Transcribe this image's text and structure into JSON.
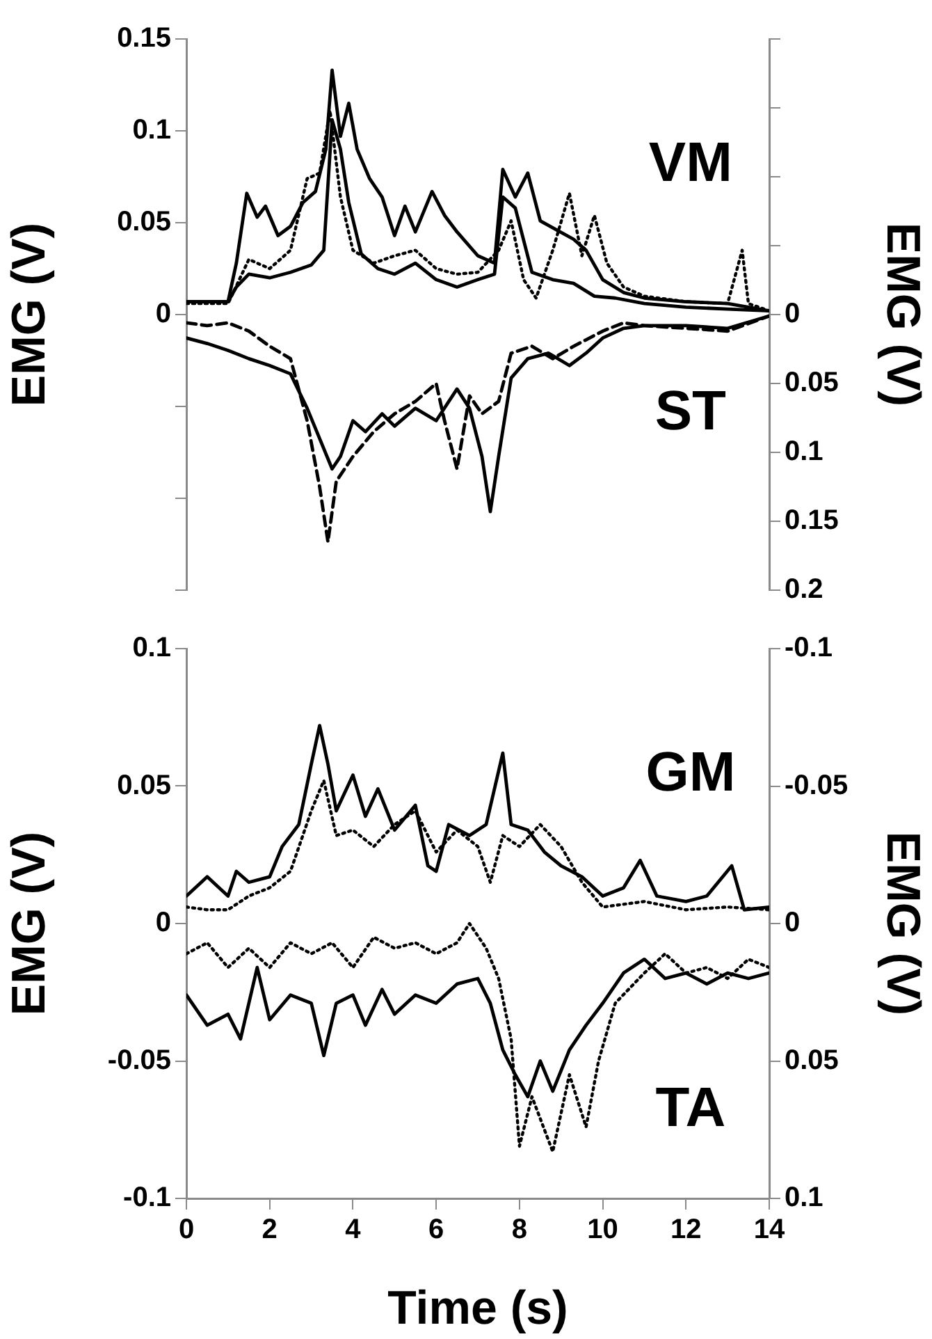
{
  "chart_data": [
    {
      "type": "line",
      "ylabel": "EMG (V)",
      "y2label": "EMG (V)",
      "xlim": [
        0,
        14
      ],
      "xticks": [
        0,
        2,
        4,
        6,
        8,
        10,
        12,
        14
      ],
      "ylim": [
        -0.15,
        0.15
      ],
      "yticks": [
        {
          "value": -0.15,
          "label": null
        },
        {
          "value": -0.1,
          "label": null
        },
        {
          "value": -0.05,
          "label": null
        },
        0,
        0.05,
        0.1,
        0.15
      ],
      "y2lim": [
        0.2,
        -0.2
      ],
      "y2ticks": [
        {
          "value": -0.2,
          "label": null
        },
        {
          "value": -0.15,
          "label": null
        },
        {
          "value": -0.1,
          "label": null
        },
        {
          "value": -0.05,
          "label": null
        },
        0,
        0.05,
        0.1,
        0.15,
        0.2
      ],
      "tick_labels": "y",
      "grid": false,
      "legend": false,
      "marker": "none",
      "series": [
        {
          "name": "VM",
          "color": "#000000",
          "line_style": "solid",
          "x": [
            0,
            1,
            1.2,
            1.45,
            1.7,
            1.9,
            2.2,
            2.5,
            2.8,
            3.1,
            3.35,
            3.5,
            3.7,
            3.9,
            4.1,
            4.4,
            4.7,
            5,
            5.25,
            5.5,
            5.9,
            6.2,
            6.5,
            7,
            7.4,
            7.6,
            7.9,
            8.2,
            8.5,
            8.9,
            9.3,
            9.6,
            10,
            10.5,
            11,
            12,
            13,
            14
          ],
          "values": [
            0.007,
            0.007,
            0.028,
            0.066,
            0.053,
            0.059,
            0.043,
            0.048,
            0.061,
            0.067,
            0.09,
            0.133,
            0.097,
            0.115,
            0.09,
            0.074,
            0.064,
            0.043,
            0.059,
            0.045,
            0.067,
            0.054,
            0.045,
            0.032,
            0.028,
            0.079,
            0.064,
            0.077,
            0.051,
            0.046,
            0.041,
            0.035,
            0.019,
            0.012,
            0.009,
            0.007,
            0.006,
            0.002
          ]
        },
        {
          "color": "#000000",
          "line_style": "solid",
          "x": [
            0,
            1,
            1.2,
            1.5,
            2,
            2.5,
            3,
            3.3,
            3.5,
            3.7,
            3.9,
            4.2,
            4.6,
            5,
            5.5,
            6,
            6.5,
            7,
            7.4,
            7.6,
            7.9,
            8.3,
            8.8,
            9.3,
            9.8,
            10.3,
            11,
            12,
            13,
            14
          ],
          "values": [
            0.007,
            0.007,
            0.015,
            0.022,
            0.02,
            0.023,
            0.027,
            0.035,
            0.106,
            0.09,
            0.061,
            0.033,
            0.025,
            0.022,
            0.028,
            0.019,
            0.015,
            0.019,
            0.022,
            0.064,
            0.058,
            0.023,
            0.019,
            0.017,
            0.01,
            0.009,
            0.006,
            0.004,
            0.003,
            0.002
          ]
        },
        {
          "color": "#000000",
          "line_style": "dotted",
          "x": [
            0,
            1,
            1.5,
            2,
            2.5,
            2.9,
            3.2,
            3.45,
            3.7,
            4,
            4.5,
            5,
            5.5,
            6,
            6.5,
            7,
            7.5,
            7.8,
            8.1,
            8.4,
            8.8,
            9.2,
            9.5,
            9.8,
            10.1,
            10.5,
            11,
            12,
            13,
            13.35,
            13.5,
            14
          ],
          "values": [
            0.006,
            0.006,
            0.03,
            0.025,
            0.035,
            0.074,
            0.077,
            0.111,
            0.064,
            0.035,
            0.028,
            0.032,
            0.035,
            0.025,
            0.022,
            0.023,
            0.035,
            0.051,
            0.019,
            0.009,
            0.035,
            0.066,
            0.032,
            0.054,
            0.028,
            0.015,
            0.01,
            0.007,
            0.006,
            0.035,
            0.006,
            0.002
          ]
        },
        {
          "name": "ST",
          "color": "#000000",
          "line_style": "solid",
          "axis": "y2",
          "x": [
            0,
            0.5,
            1,
            1.5,
            2,
            2.5,
            2.9,
            3.2,
            3.5,
            3.7,
            4,
            4.3,
            4.7,
            5,
            5.5,
            6,
            6.5,
            6.8,
            7.1,
            7.3,
            7.5,
            7.8,
            8.2,
            8.7,
            9.2,
            9.6,
            10,
            10.5,
            11,
            12,
            13,
            14
          ],
          "values": [
            0.017,
            0.021,
            0.026,
            0.032,
            0.037,
            0.043,
            0.068,
            0.09,
            0.112,
            0.103,
            0.077,
            0.085,
            0.072,
            0.081,
            0.068,
            0.077,
            0.054,
            0.068,
            0.103,
            0.143,
            0.103,
            0.046,
            0.032,
            0.028,
            0.037,
            0.028,
            0.017,
            0.01,
            0.008,
            0.008,
            0.01,
            0.001
          ]
        },
        {
          "color": "#000000",
          "line_style": "dashed",
          "axis": "y2",
          "x": [
            0,
            0.5,
            1,
            1.5,
            2,
            2.5,
            2.9,
            3.2,
            3.4,
            3.6,
            4,
            4.5,
            5,
            5.5,
            6,
            6.2,
            6.5,
            6.8,
            7.1,
            7.5,
            7.8,
            8.3,
            8.8,
            9.3,
            10,
            10.5,
            11,
            12,
            13,
            14
          ],
          "values": [
            0.006,
            0.008,
            0.006,
            0.012,
            0.023,
            0.032,
            0.077,
            0.125,
            0.165,
            0.121,
            0.103,
            0.085,
            0.072,
            0.063,
            0.05,
            0.077,
            0.112,
            0.059,
            0.072,
            0.063,
            0.028,
            0.023,
            0.032,
            0.023,
            0.012,
            0.006,
            0.008,
            0.01,
            0.012,
            0.001
          ]
        }
      ]
    },
    {
      "type": "line",
      "xlabel": "Time (s)",
      "ylabel": "EMG (V)",
      "y2label": "EMG (V)",
      "xlim": [
        0,
        14
      ],
      "xticks": [
        0,
        2,
        4,
        6,
        8,
        10,
        12,
        14
      ],
      "ylim": [
        -0.1,
        0.1
      ],
      "yticks": [
        -0.1,
        -0.05,
        0,
        0.05,
        0.1
      ],
      "y2lim": [
        0.1,
        -0.1
      ],
      "y2ticks": [
        -0.1,
        -0.05,
        0,
        0.05,
        0.1
      ],
      "grid": false,
      "legend": false,
      "marker": "none",
      "series": [
        {
          "name": "GM",
          "color": "#000000",
          "line_style": "solid",
          "x": [
            0,
            0.5,
            1,
            1.2,
            1.5,
            2,
            2.3,
            2.7,
            3,
            3.2,
            3.4,
            3.6,
            4,
            4.3,
            4.6,
            5,
            5.5,
            5.8,
            6,
            6.3,
            6.8,
            7.2,
            7.6,
            7.8,
            8.2,
            8.6,
            9,
            9.5,
            10,
            10.5,
            10.9,
            11.3,
            12,
            12.5,
            13.1,
            13.4,
            14
          ],
          "values": [
            0.01,
            0.017,
            0.01,
            0.019,
            0.015,
            0.017,
            0.028,
            0.036,
            0.058,
            0.072,
            0.058,
            0.041,
            0.054,
            0.039,
            0.049,
            0.034,
            0.043,
            0.021,
            0.019,
            0.036,
            0.032,
            0.036,
            0.062,
            0.036,
            0.034,
            0.026,
            0.021,
            0.017,
            0.01,
            0.013,
            0.023,
            0.01,
            0.008,
            0.01,
            0.021,
            0.005,
            0.006
          ]
        },
        {
          "color": "#000000",
          "line_style": "dotted",
          "x": [
            0,
            0.5,
            1,
            1.5,
            2,
            2.5,
            3,
            3.3,
            3.6,
            4,
            4.5,
            5,
            5.5,
            6,
            6.5,
            7,
            7.3,
            7.6,
            8,
            8.5,
            9,
            9.5,
            10,
            11,
            12,
            13,
            14
          ],
          "values": [
            0.006,
            0.005,
            0.005,
            0.01,
            0.013,
            0.019,
            0.041,
            0.052,
            0.032,
            0.034,
            0.028,
            0.036,
            0.041,
            0.026,
            0.034,
            0.028,
            0.015,
            0.032,
            0.028,
            0.036,
            0.028,
            0.015,
            0.006,
            0.008,
            0.005,
            0.006,
            0.005
          ]
        },
        {
          "name": "TA",
          "color": "#000000",
          "line_style": "solid",
          "axis": "y2",
          "x": [
            0,
            0.5,
            1,
            1.3,
            1.7,
            2,
            2.5,
            3,
            3.3,
            3.6,
            4,
            4.3,
            4.7,
            5,
            5.5,
            6,
            6.5,
            7,
            7.3,
            7.6,
            7.9,
            8.2,
            8.5,
            8.8,
            9.2,
            9.6,
            10,
            10.5,
            11,
            11.5,
            12,
            12.5,
            13,
            13.5,
            14
          ],
          "values": [
            0.026,
            0.037,
            0.033,
            0.042,
            0.016,
            0.035,
            0.026,
            0.029,
            0.048,
            0.029,
            0.026,
            0.037,
            0.024,
            0.033,
            0.026,
            0.029,
            0.022,
            0.02,
            0.029,
            0.046,
            0.055,
            0.063,
            0.05,
            0.061,
            0.046,
            0.037,
            0.029,
            0.018,
            0.013,
            0.02,
            0.018,
            0.022,
            0.018,
            0.02,
            0.018
          ]
        },
        {
          "color": "#000000",
          "line_style": "dotted",
          "axis": "y2",
          "x": [
            0,
            0.5,
            1,
            1.5,
            2,
            2.5,
            3,
            3.5,
            4,
            4.5,
            5,
            5.5,
            6,
            6.5,
            6.8,
            7.2,
            7.5,
            7.8,
            8,
            8.3,
            8.8,
            9.2,
            9.6,
            9.9,
            10.3,
            11,
            11.5,
            12,
            12.5,
            13,
            13.5,
            14
          ],
          "values": [
            0.011,
            0.007,
            0.016,
            0.009,
            0.016,
            0.007,
            0.011,
            0.007,
            0.016,
            0.005,
            0.009,
            0.007,
            0.011,
            0.007,
            0,
            0.009,
            0.02,
            0.042,
            0.081,
            0.063,
            0.083,
            0.055,
            0.074,
            0.05,
            0.029,
            0.018,
            0.011,
            0.018,
            0.016,
            0.02,
            0.013,
            0.016
          ]
        }
      ]
    }
  ]
}
